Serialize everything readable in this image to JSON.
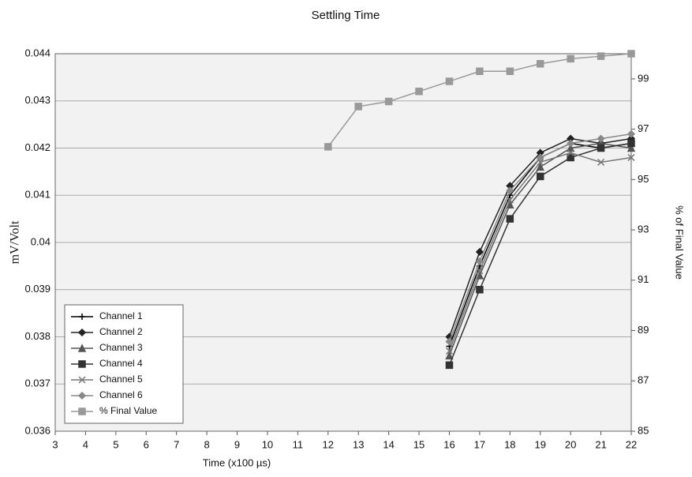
{
  "chart_data": {
    "type": "line",
    "title": "Settling Time",
    "x_label": "Time (x100 µs)",
    "y_label": "mV/Volt",
    "y2_label": "% of Final Value",
    "xlim": [
      3,
      22
    ],
    "xticks": [
      3,
      4,
      5,
      6,
      7,
      8,
      9,
      10,
      11,
      12,
      13,
      14,
      15,
      16,
      17,
      18,
      19,
      20,
      21,
      22
    ],
    "ylim": [
      0.036,
      0.044
    ],
    "yticks": [
      0.036,
      0.037,
      0.038,
      0.039,
      0.04,
      0.041,
      0.042,
      0.043,
      0.044
    ],
    "y2lim": [
      85,
      100
    ],
    "y2ticks": [
      85,
      87,
      89,
      91,
      93,
      95,
      97,
      99
    ],
    "grid": true,
    "legend": "bottom-left",
    "series": [
      {
        "name": "Channel 1",
        "color": "#000000",
        "marker": "plus",
        "x": [
          16,
          17,
          18,
          19,
          20,
          21,
          22
        ],
        "values": [
          0.0378,
          0.0395,
          0.041,
          0.0418,
          0.0421,
          0.042,
          0.0421
        ]
      },
      {
        "name": "Channel 2",
        "color": "#222222",
        "marker": "diamond",
        "x": [
          16,
          17,
          18,
          19,
          20,
          21,
          22
        ],
        "values": [
          0.038,
          0.0398,
          0.0412,
          0.0419,
          0.0422,
          0.0421,
          0.0422
        ]
      },
      {
        "name": "Channel 3",
        "color": "#555555",
        "marker": "triangle",
        "x": [
          16,
          17,
          18,
          19,
          20,
          21,
          22
        ],
        "values": [
          0.0376,
          0.0393,
          0.0408,
          0.0416,
          0.042,
          0.0421,
          0.042
        ]
      },
      {
        "name": "Channel 4",
        "color": "#333333",
        "marker": "square",
        "x": [
          16,
          17,
          18,
          19,
          20,
          21,
          22
        ],
        "values": [
          0.0374,
          0.039,
          0.0405,
          0.0414,
          0.0418,
          0.042,
          0.0421
        ]
      },
      {
        "name": "Channel 5",
        "color": "#777777",
        "marker": "cross",
        "x": [
          16,
          17,
          18,
          19,
          20,
          21,
          22
        ],
        "values": [
          0.0377,
          0.0394,
          0.0409,
          0.0417,
          0.0419,
          0.0417,
          0.0418
        ]
      },
      {
        "name": "Channel 6",
        "color": "#888888",
        "marker": "diamond",
        "x": [
          16,
          17,
          18,
          19,
          20,
          21,
          22
        ],
        "values": [
          0.0379,
          0.0396,
          0.0411,
          0.0418,
          0.0421,
          0.0422,
          0.0423
        ]
      },
      {
        "name": "% Final Value",
        "color": "#999999",
        "marker": "square",
        "axis": "y2",
        "x": [
          12,
          13,
          14,
          15,
          16,
          17,
          18,
          19,
          20,
          21,
          22
        ],
        "values": [
          96.3,
          97.9,
          98.1,
          98.5,
          98.9,
          99.3,
          99.3,
          99.6,
          99.8,
          99.9,
          100
        ]
      }
    ]
  }
}
